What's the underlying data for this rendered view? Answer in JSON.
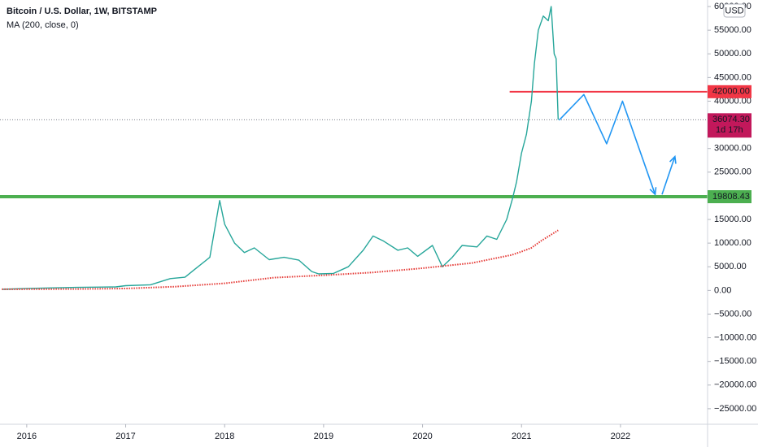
{
  "chart_data": {
    "type": "line",
    "title": "Bitcoin / U.S. Dollar, 1W, BITSTAMP",
    "subtitle": "MA (200, close, 0)",
    "currency": "USD",
    "xlim": [
      2015.73,
      2022.88
    ],
    "xticks": [
      2016,
      2017,
      2018,
      2019,
      2020,
      2021,
      2022
    ],
    "ylim": [
      -28280,
      61380
    ],
    "yticks": [
      {
        "value": -25000,
        "label": "−25000.00"
      },
      {
        "value": -20000,
        "label": "−20000.00"
      },
      {
        "value": -15000,
        "label": "−15000.00"
      },
      {
        "value": -10000,
        "label": "−10000.00"
      },
      {
        "value": -5000,
        "label": "−5000.00"
      },
      {
        "value": 0,
        "label": "0.00"
      },
      {
        "value": 5000,
        "label": "5000.00"
      },
      {
        "value": 10000,
        "label": "10000.00"
      },
      {
        "value": 15000,
        "label": "15000.00"
      },
      {
        "value": 20000,
        "label": "20000.00"
      },
      {
        "value": 25000,
        "label": "25000.00"
      },
      {
        "value": 30000,
        "label": "30000.00"
      },
      {
        "value": 35000,
        "label": "35000.00"
      },
      {
        "value": 40000,
        "label": "40000.00"
      },
      {
        "value": 45000,
        "label": "45000.00"
      },
      {
        "value": 50000,
        "label": "50000.00"
      },
      {
        "value": 55000,
        "label": "55000.00"
      },
      {
        "value": 60000,
        "label": "60000.00"
      }
    ],
    "series": [
      {
        "name": "Bitcoin / U.S. Dollar",
        "color": "#26a69a",
        "x": [
          2015.75,
          2016.0,
          2016.5,
          2016.9,
          2017.0,
          2017.25,
          2017.45,
          2017.6,
          2017.7,
          2017.85,
          2017.95,
          2018.0,
          2018.1,
          2018.2,
          2018.3,
          2018.45,
          2018.6,
          2018.75,
          2018.88,
          2018.95,
          2019.1,
          2019.25,
          2019.4,
          2019.5,
          2019.6,
          2019.75,
          2019.85,
          2019.95,
          2020.1,
          2020.2,
          2020.3,
          2020.4,
          2020.55,
          2020.65,
          2020.75,
          2020.85,
          2020.91,
          2020.95,
          2021.0,
          2021.05,
          2021.1,
          2021.13,
          2021.17,
          2021.22,
          2021.27,
          2021.3,
          2021.33,
          2021.35,
          2021.37
        ],
        "values": [
          240,
          430,
          650,
          750,
          1000,
          1200,
          2500,
          2800,
          4500,
          7000,
          19000,
          14000,
          10000,
          8000,
          9000,
          6500,
          7000,
          6400,
          4000,
          3500,
          3600,
          5000,
          8500,
          11500,
          10500,
          8500,
          9000,
          7200,
          9500,
          5000,
          7000,
          9500,
          9200,
          11500,
          10800,
          15000,
          19500,
          23000,
          29000,
          33000,
          40000,
          48000,
          55000,
          58000,
          57000,
          60000,
          50000,
          49000,
          36074.3
        ]
      },
      {
        "name": "MA (200, close, 0)",
        "color": "#e53935",
        "dashed": true,
        "x": [
          2015.75,
          2016.5,
          2017.0,
          2017.5,
          2018.0,
          2018.5,
          2019.0,
          2019.5,
          2020.0,
          2020.5,
          2020.9,
          2021.0,
          2021.1,
          2021.2,
          2021.37
        ],
        "values": [
          250,
          300,
          400,
          800,
          1500,
          2700,
          3200,
          3800,
          4700,
          5800,
          7500,
          8200,
          9000,
          10500,
          12700
        ]
      },
      {
        "name": "Projection",
        "color": "#2196f3",
        "arrow": true,
        "x": [
          2021.38,
          2021.63,
          2021.86,
          2022.02,
          2022.35
        ],
        "values": [
          36000,
          41400,
          31000,
          40000,
          20300
        ]
      },
      {
        "name": "Projection up",
        "color": "#2196f3",
        "arrow": true,
        "x": [
          2022.42,
          2022.55
        ],
        "values": [
          20300,
          28300
        ]
      }
    ],
    "hlines": [
      {
        "value": 42000,
        "label": "42000.00",
        "color": "#f23645",
        "x_start": 2020.88
      },
      {
        "value": 19808.43,
        "label": "19808.43",
        "color": "#4caf50"
      }
    ],
    "last_price": {
      "value": 36074.3,
      "label": "36074.30",
      "countdown": "1d 17h",
      "color": "#c2185b"
    }
  }
}
